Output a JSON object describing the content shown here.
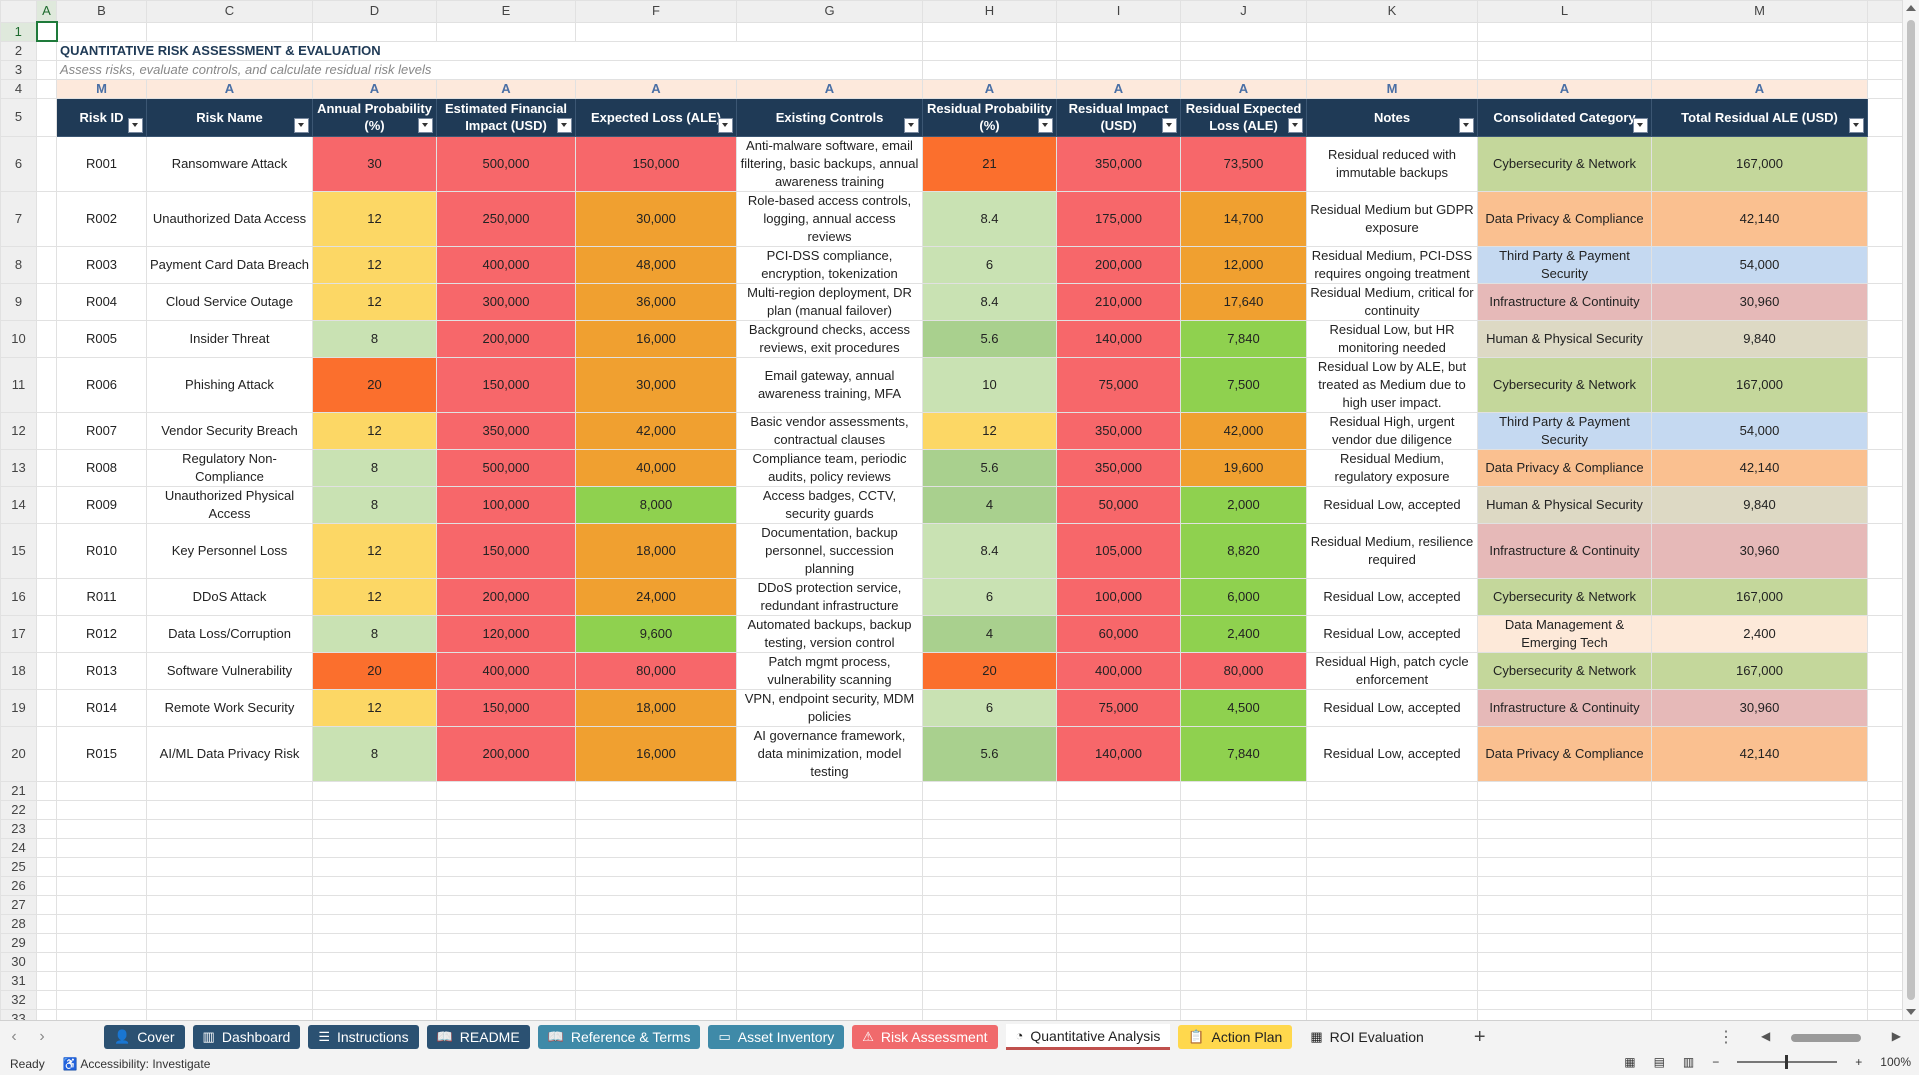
{
  "columns": [
    "A",
    "B",
    "C",
    "D",
    "E",
    "F",
    "G",
    "H",
    "I",
    "J",
    "K",
    "L",
    "M"
  ],
  "title": "QUANTITATIVE RISK ASSESSMENT & EVALUATION",
  "subtitle": "Assess risks, evaluate controls, and calculate residual risk levels",
  "row4_markers": [
    "M",
    "A",
    "A",
    "A",
    "A",
    "A",
    "A",
    "A",
    "A",
    "M",
    "A",
    "A"
  ],
  "headers": [
    "Risk ID",
    "Risk Name",
    "Annual Probability (%)",
    "Estimated Financial Impact (USD)",
    "Expected Loss (ALE)",
    "Existing Controls",
    "Residual Probability (%)",
    "Residual Impact (USD)",
    "Residual Expected Loss (ALE)",
    "Notes",
    "Consolidated Category",
    "Total Residual ALE (USD)"
  ],
  "rows": [
    {
      "id": "R001",
      "name": "Ransomware Attack",
      "prob": "30",
      "impact": "500,000",
      "ale": "150,000",
      "controls": "Anti-malware software, email filtering, basic backups, annual awareness training",
      "rprob": "21",
      "rimpact": "350,000",
      "rale": "73,500",
      "notes": "Residual reduced with immutable backups",
      "category": "Cybersecurity & Network",
      "total": "167,000"
    },
    {
      "id": "R002",
      "name": "Unauthorized Data Access",
      "prob": "12",
      "impact": "250,000",
      "ale": "30,000",
      "controls": "Role-based access controls, logging, annual access reviews",
      "rprob": "8.4",
      "rimpact": "175,000",
      "rale": "14,700",
      "notes": "Residual Medium but GDPR exposure",
      "category": "Data Privacy & Compliance",
      "total": "42,140"
    },
    {
      "id": "R003",
      "name": "Payment Card Data Breach",
      "prob": "12",
      "impact": "400,000",
      "ale": "48,000",
      "controls": "PCI-DSS compliance, encryption, tokenization",
      "rprob": "6",
      "rimpact": "200,000",
      "rale": "12,000",
      "notes": "Residual Medium, PCI-DSS requires ongoing treatment",
      "category": "Third Party & Payment Security",
      "total": "54,000"
    },
    {
      "id": "R004",
      "name": "Cloud Service Outage",
      "prob": "12",
      "impact": "300,000",
      "ale": "36,000",
      "controls": "Multi-region deployment, DR plan (manual failover)",
      "rprob": "8.4",
      "rimpact": "210,000",
      "rale": "17,640",
      "notes": "Residual Medium, critical for continuity",
      "category": "Infrastructure & Continuity",
      "total": "30,960"
    },
    {
      "id": "R005",
      "name": "Insider Threat",
      "prob": "8",
      "impact": "200,000",
      "ale": "16,000",
      "controls": "Background checks, access reviews, exit procedures",
      "rprob": "5.6",
      "rimpact": "140,000",
      "rale": "7,840",
      "notes": "Residual Low, but HR monitoring needed",
      "category": "Human & Physical Security",
      "total": "9,840"
    },
    {
      "id": "R006",
      "name": "Phishing Attack",
      "prob": "20",
      "impact": "150,000",
      "ale": "30,000",
      "controls": "Email gateway, annual awareness training, MFA",
      "rprob": "10",
      "rimpact": "75,000",
      "rale": "7,500",
      "notes": "Residual Low by ALE, but treated as Medium due to high user impact.",
      "category": "Cybersecurity & Network",
      "total": "167,000"
    },
    {
      "id": "R007",
      "name": "Vendor Security Breach",
      "prob": "12",
      "impact": "350,000",
      "ale": "42,000",
      "controls": "Basic vendor assessments, contractual clauses",
      "rprob": "12",
      "rimpact": "350,000",
      "rale": "42,000",
      "notes": "Residual High, urgent vendor due diligence",
      "category": "Third Party & Payment Security",
      "total": "54,000"
    },
    {
      "id": "R008",
      "name": "Regulatory Non-Compliance",
      "prob": "8",
      "impact": "500,000",
      "ale": "40,000",
      "controls": "Compliance team, periodic audits, policy reviews",
      "rprob": "5.6",
      "rimpact": "350,000",
      "rale": "19,600",
      "notes": "Residual Medium, regulatory exposure",
      "category": "Data Privacy & Compliance",
      "total": "42,140"
    },
    {
      "id": "R009",
      "name": "Unauthorized Physical Access",
      "prob": "8",
      "impact": "100,000",
      "ale": "8,000",
      "controls": "Access badges, CCTV, security guards",
      "rprob": "4",
      "rimpact": "50,000",
      "rale": "2,000",
      "notes": "Residual Low, accepted",
      "category": "Human & Physical Security",
      "total": "9,840"
    },
    {
      "id": "R010",
      "name": "Key Personnel Loss",
      "prob": "12",
      "impact": "150,000",
      "ale": "18,000",
      "controls": "Documentation, backup personnel, succession planning",
      "rprob": "8.4",
      "rimpact": "105,000",
      "rale": "8,820",
      "notes": "Residual Medium, resilience required",
      "category": "Infrastructure & Continuity",
      "total": "30,960"
    },
    {
      "id": "R011",
      "name": "DDoS Attack",
      "prob": "12",
      "impact": "200,000",
      "ale": "24,000",
      "controls": "DDoS protection service, redundant infrastructure",
      "rprob": "6",
      "rimpact": "100,000",
      "rale": "6,000",
      "notes": "Residual Low, accepted",
      "category": "Cybersecurity & Network",
      "total": "167,000"
    },
    {
      "id": "R012",
      "name": "Data Loss/Corruption",
      "prob": "8",
      "impact": "120,000",
      "ale": "9,600",
      "controls": "Automated backups, backup testing, version control",
      "rprob": "4",
      "rimpact": "60,000",
      "rale": "2,400",
      "notes": "Residual Low, accepted",
      "category": "Data Management & Emerging Tech",
      "total": "2,400"
    },
    {
      "id": "R013",
      "name": "Software Vulnerability",
      "prob": "20",
      "impact": "400,000",
      "ale": "80,000",
      "controls": "Patch mgmt process, vulnerability scanning",
      "rprob": "20",
      "rimpact": "400,000",
      "rale": "80,000",
      "notes": "Residual High, patch cycle enforcement",
      "category": "Cybersecurity & Network",
      "total": "167,000"
    },
    {
      "id": "R014",
      "name": "Remote Work Security",
      "prob": "12",
      "impact": "150,000",
      "ale": "18,000",
      "controls": "VPN, endpoint security, MDM policies",
      "rprob": "6",
      "rimpact": "75,000",
      "rale": "4,500",
      "notes": "Residual Low, accepted",
      "category": "Infrastructure & Continuity",
      "total": "30,960"
    },
    {
      "id": "R015",
      "name": "AI/ML Data Privacy Risk",
      "prob": "8",
      "impact": "200,000",
      "ale": "16,000",
      "controls": "AI governance framework, data minimization, model testing",
      "rprob": "5.6",
      "rimpact": "140,000",
      "rale": "7,840",
      "notes": "Residual Low, accepted",
      "category": "Data Privacy & Compliance",
      "total": "42,140"
    }
  ],
  "tabs": [
    {
      "label": "Cover",
      "icon": "person-icon",
      "cls": "t-cover"
    },
    {
      "label": "Dashboard",
      "icon": "chart-icon",
      "cls": "t-dash"
    },
    {
      "label": "Instructions",
      "icon": "list-icon",
      "cls": "t-instr"
    },
    {
      "label": "README",
      "icon": "book-icon",
      "cls": "t-readme"
    },
    {
      "label": "Reference & Terms",
      "icon": "book-icon",
      "cls": "t-ref"
    },
    {
      "label": "Asset Inventory",
      "icon": "box-icon",
      "cls": "t-asset"
    },
    {
      "label": "Risk Assessment",
      "icon": "warning-icon",
      "cls": "t-risk"
    },
    {
      "label": "Quantitative Analysis",
      "icon": "gauge-icon",
      "cls": "t-quant"
    },
    {
      "label": "Action Plan",
      "icon": "clipboard-icon",
      "cls": "t-action"
    },
    {
      "label": "ROI Evaluation",
      "icon": "table-icon",
      "cls": "t-roi"
    }
  ],
  "status": {
    "ready": "Ready",
    "accessibility": "Accessibility: Investigate",
    "zoom": "100%"
  }
}
